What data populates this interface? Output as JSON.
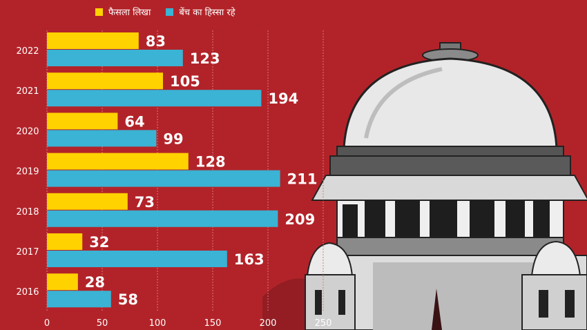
{
  "chart_data": {
    "type": "bar",
    "orientation": "horizontal",
    "categories": [
      "2022",
      "2021",
      "2020",
      "2019",
      "2018",
      "2017",
      "2016"
    ],
    "series": [
      {
        "name": "फैसला लिखा",
        "color": "#ffd200",
        "values": [
          83,
          105,
          64,
          128,
          73,
          32,
          28
        ]
      },
      {
        "name": "बेंच का हिस्सा रहे",
        "color": "#3ab3d4",
        "values": [
          123,
          194,
          99,
          211,
          209,
          163,
          58
        ]
      }
    ],
    "xlim": [
      0,
      250
    ],
    "xticks": [
      "0",
      "50",
      "100",
      "150",
      "200",
      "250"
    ],
    "grid": true,
    "legend": "top-left"
  },
  "colors": {
    "background": "#b8252b",
    "text": "#ffffff"
  },
  "illustration": "supreme-court-dome"
}
